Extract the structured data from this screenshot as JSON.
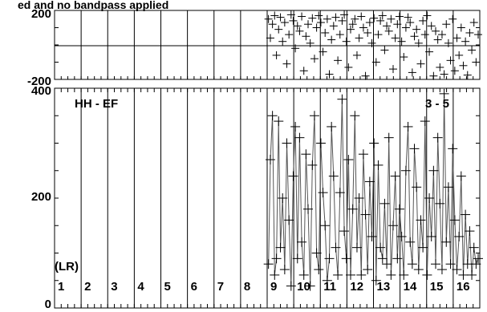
{
  "header": {
    "title_fragment": "ed and no bandpass applied"
  },
  "panel_labels": {
    "baseline": "HH - EF",
    "range": "3 - 5",
    "polarization": "(LR)"
  },
  "colors": {
    "ink": "#000000",
    "trace": "#555555",
    "background": "#ffffff"
  },
  "chart_data": [
    {
      "type": "scatter",
      "title": "",
      "xlabel": "",
      "ylabel": "",
      "ylim": [
        -200,
        200
      ],
      "yticks": [
        200,
        -200
      ],
      "grid": true,
      "marker": "+",
      "x_range": [
        0,
        16
      ],
      "data_start_x": 8,
      "points": {
        "x": [
          8.05,
          8.12,
          8.2,
          8.28,
          8.35,
          8.43,
          8.5,
          8.58,
          8.66,
          8.74,
          8.82,
          8.9,
          8.98,
          9.06,
          9.14,
          9.22,
          9.3,
          9.38,
          9.46,
          9.54,
          9.62,
          9.7,
          9.78,
          9.86,
          9.94,
          10.02,
          10.1,
          10.18,
          10.26,
          10.34,
          10.42,
          10.5,
          10.58,
          10.66,
          10.74,
          10.82,
          10.9,
          10.98,
          11.06,
          11.14,
          11.22,
          11.3,
          11.38,
          11.46,
          11.54,
          11.62,
          11.7,
          11.78,
          11.86,
          11.94,
          12.02,
          12.1,
          12.18,
          12.26,
          12.34,
          12.42,
          12.5,
          12.58,
          12.66,
          12.74,
          12.82,
          12.9,
          12.98,
          13.06,
          13.14,
          13.22,
          13.3,
          13.38,
          13.46,
          13.54,
          13.62,
          13.7,
          13.78,
          13.86,
          13.94,
          14.02,
          14.1,
          14.18,
          14.26,
          14.34,
          14.42,
          14.5,
          14.58,
          14.66,
          14.74,
          14.82,
          14.9,
          14.98,
          15.06,
          15.14,
          15.22,
          15.3,
          15.38,
          15.46,
          15.54,
          15.62,
          15.7,
          15.78,
          15.86,
          15.94
        ],
        "y": [
          150,
          40,
          120,
          170,
          -60,
          90,
          160,
          20,
          130,
          -110,
          60,
          175,
          140,
          -20,
          110,
          80,
          165,
          -150,
          50,
          120,
          10,
          155,
          -80,
          100,
          170,
          130,
          -40,
          70,
          150,
          -170,
          30,
          110,
          160,
          -90,
          60,
          140,
          175,
          20,
          -130,
          90,
          120,
          150,
          -60,
          40,
          165,
          100,
          -180,
          70,
          130,
          10,
          155,
          -100,
          60,
          140,
          170,
          -30,
          110,
          80,
          150,
          -140,
          40,
          120,
          165,
          20,
          -70,
          100,
          160,
          130,
          -160,
          50,
          90,
          10,
          -110,
          140,
          60,
          170,
          -40,
          110,
          -180,
          80,
          30,
          -130,
          60,
          -170,
          120,
          10,
          -90,
          150,
          -150,
          40,
          -60,
          100,
          -120,
          20,
          -175,
          70,
          -30,
          130,
          -100,
          60
        ]
      }
    },
    {
      "type": "line",
      "title": "",
      "xlabel": "",
      "ylabel": "",
      "ylim": [
        0,
        400
      ],
      "yticks": [
        400,
        200,
        0
      ],
      "grid": true,
      "marker": "+",
      "x_range": [
        0,
        16
      ],
      "categories": [
        "1",
        "2",
        "3",
        "4",
        "5",
        "6",
        "7",
        "8",
        "9",
        "10",
        "11",
        "12",
        "13",
        "14",
        "15",
        "16"
      ],
      "series": [
        {
          "x": [
            8.05,
            8.12,
            8.2,
            8.28,
            8.35,
            8.43,
            8.5,
            8.58,
            8.66,
            8.74,
            8.82,
            8.9,
            8.98,
            9.06,
            9.14,
            9.22,
            9.3,
            9.38,
            9.46,
            9.54,
            9.62,
            9.7,
            9.78,
            9.86,
            9.94,
            10.02,
            10.1,
            10.18,
            10.26,
            10.34,
            10.42,
            10.5,
            10.58,
            10.66,
            10.74,
            10.82,
            10.9,
            10.98,
            11.06,
            11.14,
            11.22,
            11.3,
            11.38,
            11.46,
            11.54,
            11.62,
            11.7,
            11.78,
            11.86,
            11.94,
            12.02,
            12.1,
            12.18,
            12.26,
            12.34,
            12.42,
            12.5,
            12.58,
            12.66,
            12.74,
            12.82,
            12.9,
            12.98,
            13.06,
            13.14,
            13.22,
            13.3,
            13.38,
            13.46,
            13.54,
            13.62,
            13.7,
            13.78,
            13.86,
            13.94,
            14.02,
            14.1,
            14.18,
            14.26,
            14.34,
            14.42,
            14.5,
            14.58,
            14.66,
            14.74,
            14.82,
            14.9,
            14.98,
            15.06,
            15.14,
            15.22,
            15.3,
            15.38,
            15.46,
            15.54,
            15.62,
            15.7,
            15.78,
            15.86,
            15.94
          ],
          "values": [
            80,
            270,
            350,
            60,
            90,
            340,
            110,
            200,
            70,
            300,
            160,
            40,
            240,
            330,
            90,
            310,
            120,
            60,
            280,
            180,
            40,
            260,
            350,
            100,
            70,
            300,
            210,
            150,
            50,
            90,
            330,
            240,
            110,
            60,
            210,
            380,
            140,
            90,
            270,
            60,
            180,
            350,
            110,
            200,
            60,
            280,
            170,
            70,
            230,
            130,
            300,
            50,
            260,
            110,
            90,
            190,
            80,
            310,
            60,
            150,
            240,
            90,
            180,
            130,
            60,
            250,
            330,
            120,
            80,
            290,
            220,
            70,
            160,
            110,
            340,
            60,
            200,
            130,
            250,
            80,
            310,
            190,
            70,
            390,
            120,
            220,
            80,
            290,
            160,
            70,
            130,
            240,
            60,
            170,
            80,
            140,
            60,
            110,
            80,
            90
          ]
        }
      ]
    }
  ]
}
